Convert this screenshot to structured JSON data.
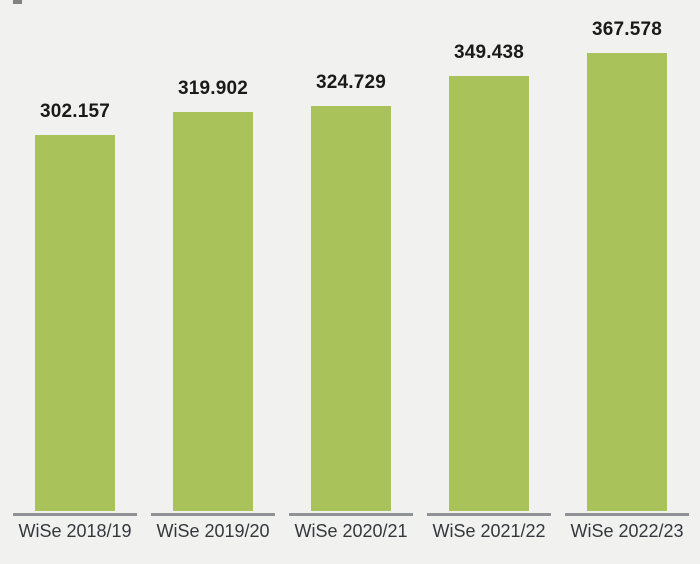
{
  "page": {
    "background_color": "#f1f2f0"
  },
  "chart_data": {
    "type": "bar",
    "title": "",
    "xlabel": "",
    "ylabel": "",
    "categories": [
      "WiSe 2018/19",
      "WiSe 2019/20",
      "WiSe 2020/21",
      "WiSe 2021/22",
      "WiSe 2022/23"
    ],
    "values": [
      302157,
      319902,
      324729,
      349438,
      367578
    ],
    "value_labels": [
      "302.157",
      "319.902",
      "324.729",
      "349.438",
      "367.578"
    ],
    "ylim": [
      0,
      367578
    ],
    "grid": false,
    "legend": false,
    "bar_color": "#aac25a",
    "value_label_color": "#1a1a1a",
    "category_label_color": "#34383c",
    "axis_line_color": "#8f9396"
  }
}
